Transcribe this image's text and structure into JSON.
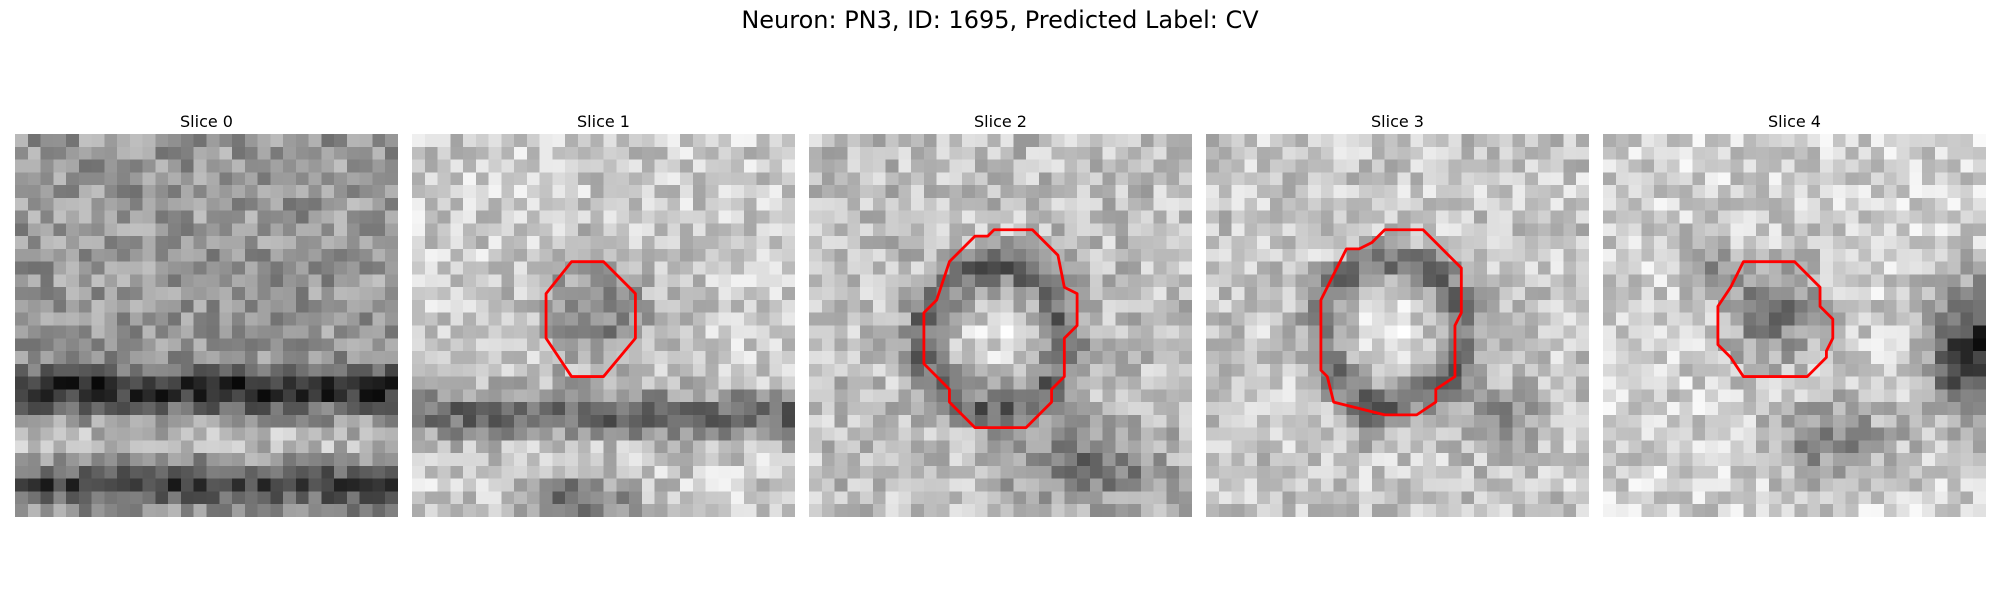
{
  "figure": {
    "title": "Neuron: PN3, ID: 1695, Predicted Label: CV"
  },
  "colors": {
    "contour": "#ff0000"
  },
  "panels": [
    {
      "title": "Slice 0"
    },
    {
      "title": "Slice 1"
    },
    {
      "title": "Slice 2"
    },
    {
      "title": "Slice 3"
    },
    {
      "title": "Slice 4"
    }
  ]
}
